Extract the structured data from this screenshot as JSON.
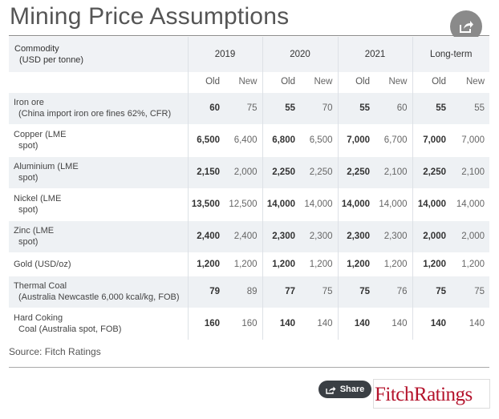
{
  "title": "Mining Price Assumptions",
  "header": {
    "commodity_label": "Commodity",
    "commodity_unit": "(USD per tonne)",
    "years": [
      "2019",
      "2020",
      "2021",
      "Long-term"
    ],
    "old_label": "Old",
    "new_label": "New"
  },
  "rows": [
    {
      "name": "Iron ore",
      "sub": "(China import iron ore fines 62%, CFR)",
      "values": [
        "60",
        "75",
        "55",
        "70",
        "55",
        "60",
        "55",
        "55"
      ]
    },
    {
      "name": "Copper (LME",
      "sub": "spot)",
      "values": [
        "6,500",
        "6,400",
        "6,800",
        "6,500",
        "7,000",
        "6,700",
        "7,000",
        "7,000"
      ]
    },
    {
      "name": "Aluminium (LME",
      "sub": "spot)",
      "values": [
        "2,150",
        "2,000",
        "2,250",
        "2,250",
        "2,250",
        "2,100",
        "2,250",
        "2,100"
      ]
    },
    {
      "name": "Nickel (LME",
      "sub": "spot)",
      "values": [
        "13,500",
        "12,500",
        "14,000",
        "14,000",
        "14,000",
        "14,000",
        "14,000",
        "14,000"
      ]
    },
    {
      "name": "Zinc (LME",
      "sub": "spot)",
      "values": [
        "2,400",
        "2,400",
        "2,300",
        "2,300",
        "2,300",
        "2,300",
        "2,000",
        "2,000"
      ]
    },
    {
      "name": "Gold (USD/oz)",
      "sub": "",
      "values": [
        "1,200",
        "1,200",
        "1,200",
        "1,200",
        "1,200",
        "1,200",
        "1,200",
        "1,200"
      ]
    },
    {
      "name": "Thermal Coal",
      "sub": "(Australia Newcastle 6,000 kcal/kg, FOB)",
      "values": [
        "79",
        "89",
        "77",
        "75",
        "75",
        "76",
        "75",
        "75"
      ]
    },
    {
      "name": "Hard Coking",
      "sub": "Coal (Australia spot, FOB)",
      "values": [
        "160",
        "160",
        "140",
        "140",
        "140",
        "140",
        "140",
        "140"
      ]
    }
  ],
  "source": "Source: Fitch Ratings",
  "share_label": "Share",
  "logo_text": "FitchRatings",
  "icons": {
    "share_circle": "share-icon",
    "share_button": "share-icon"
  },
  "colors": {
    "logo_red": "#b4122b",
    "header_bg": "#f0f2f5",
    "row_shade": "#eef1f4",
    "share_button_bg": "#3a3f44"
  }
}
